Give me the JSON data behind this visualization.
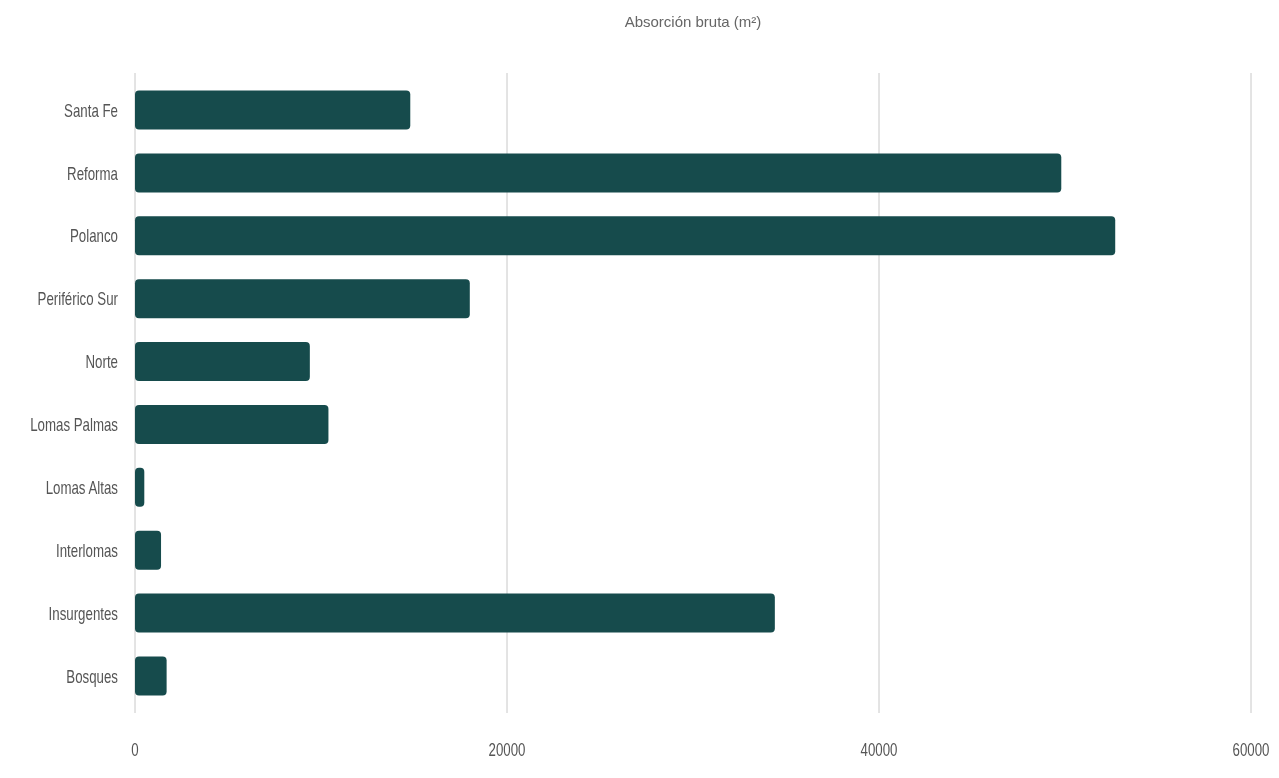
{
  "chart_data": {
    "type": "bar",
    "orientation": "horizontal",
    "title": "Absorción bruta (m²)",
    "categories": [
      "Santa Fe",
      "Reforma",
      "Polanco",
      "Periférico Sur",
      "Norte",
      "Lomas Palmas",
      "Lomas Altas",
      "Interlomas",
      "Insurgentes",
      "Bosques"
    ],
    "values": [
      14800,
      49800,
      52700,
      18000,
      9400,
      10400,
      500,
      1400,
      34400,
      1700
    ],
    "color": "#164b4c",
    "xlim": [
      0,
      60000
    ],
    "xticks": [
      0,
      20000,
      40000,
      60000
    ],
    "grid": "x"
  }
}
